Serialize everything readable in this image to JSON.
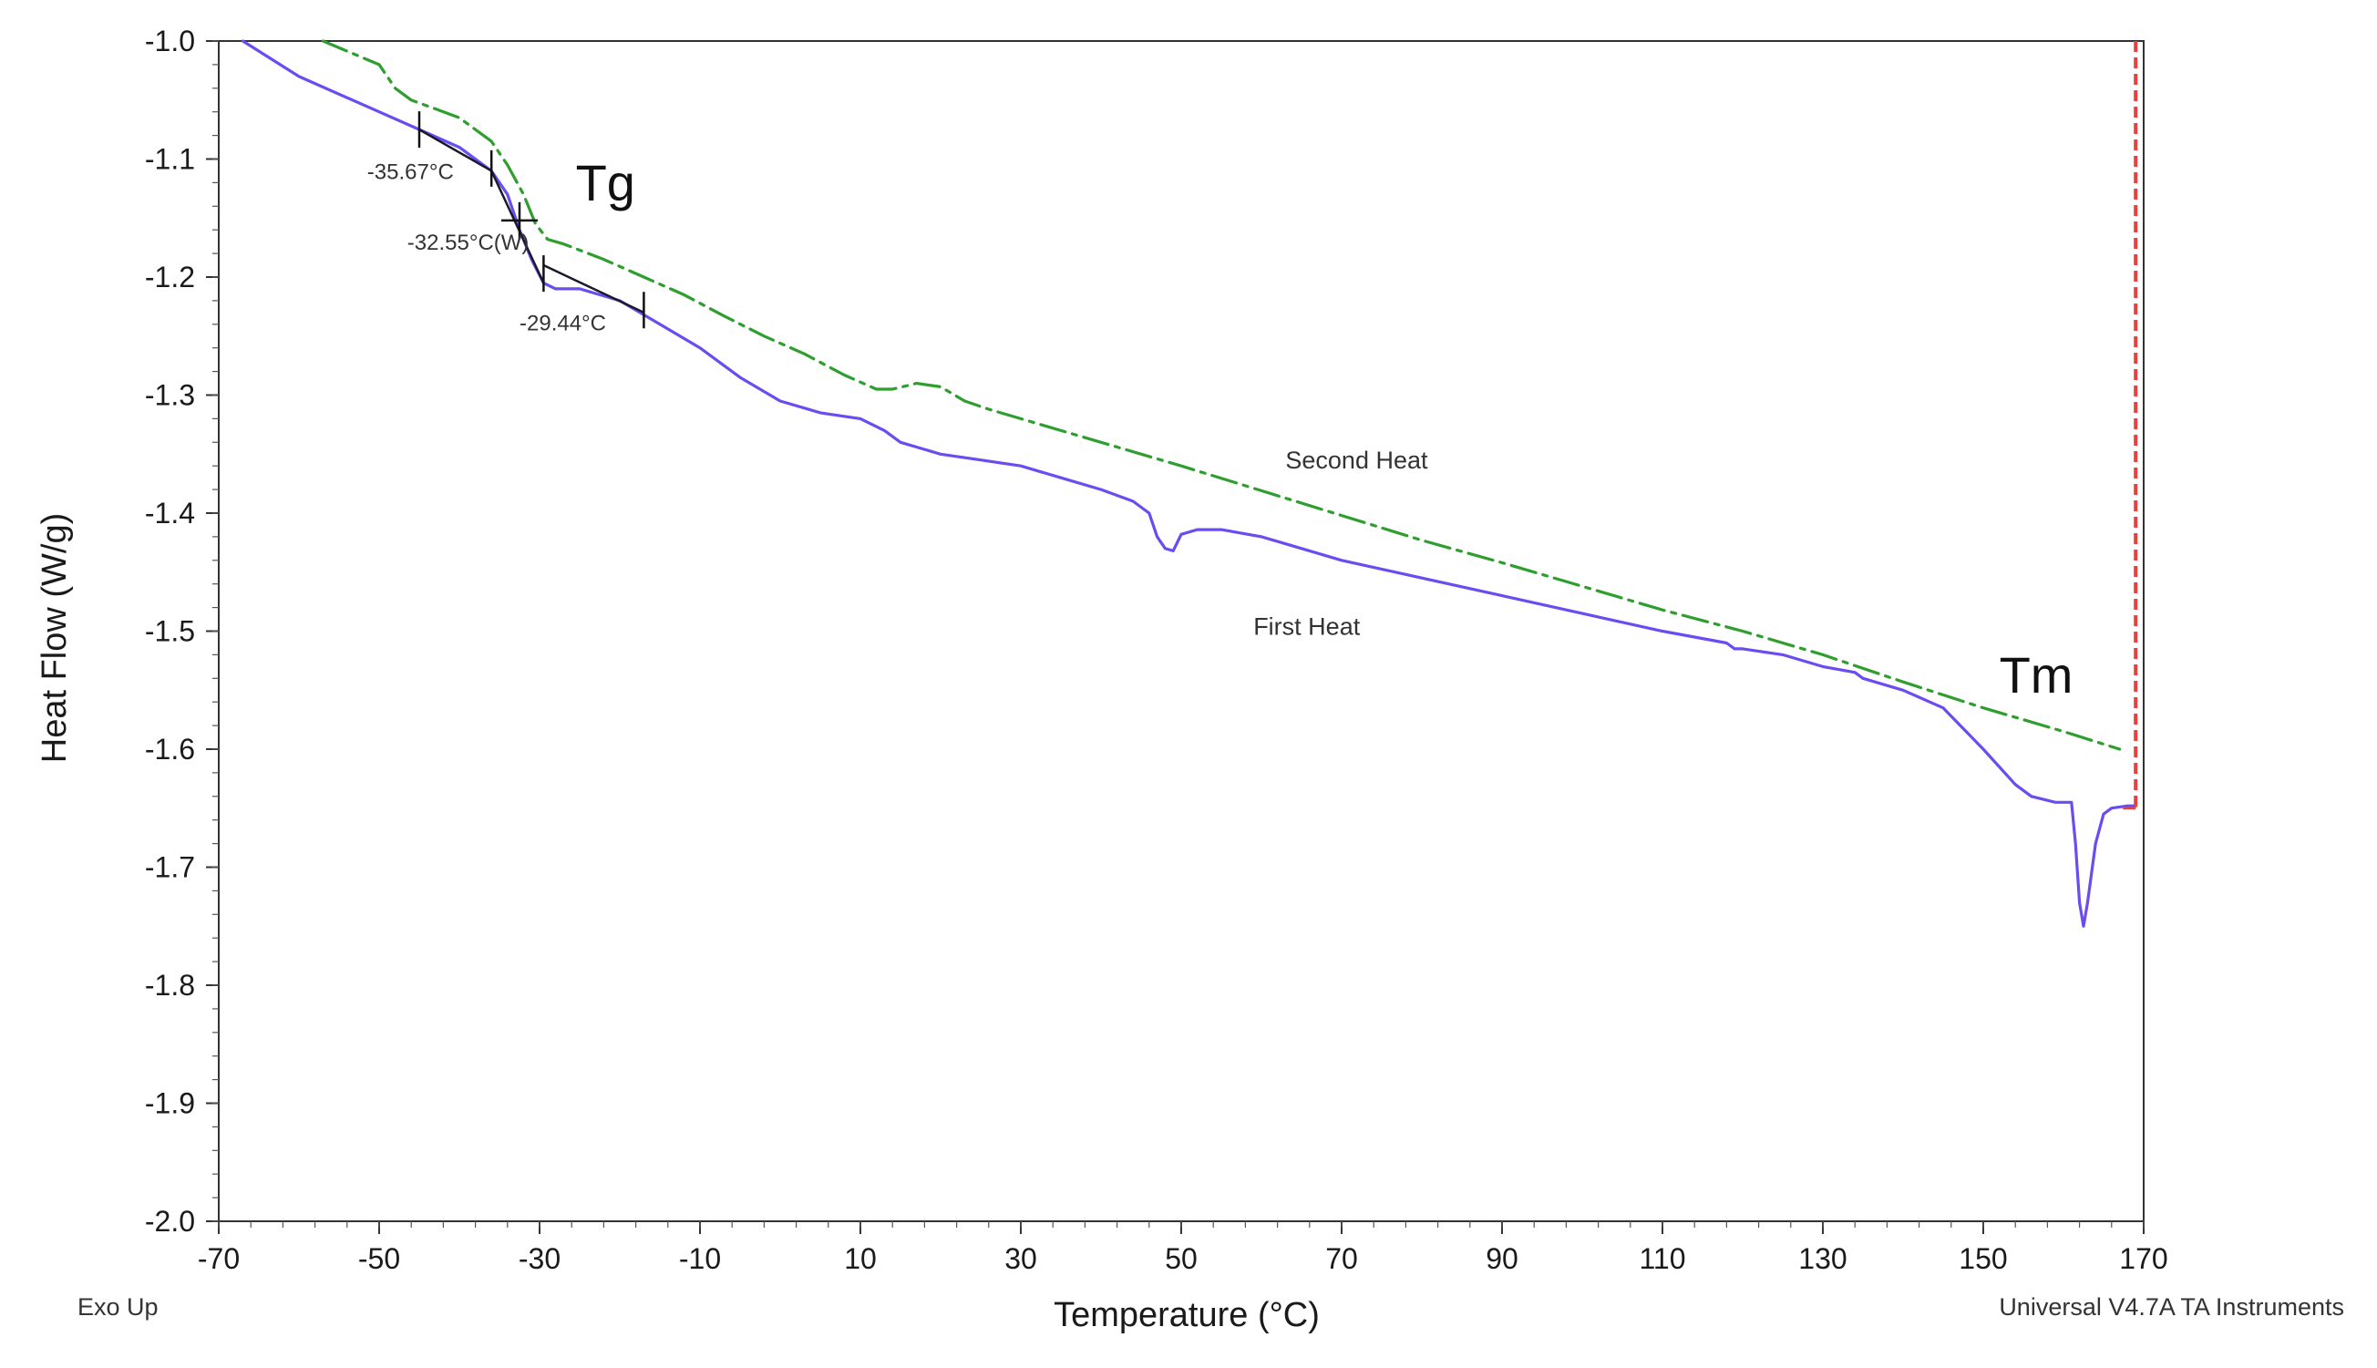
{
  "chart_data": {
    "type": "line",
    "title": "",
    "xlabel": "Temperature (°C)",
    "ylabel": "Heat Flow (W/g)",
    "xlim": [
      -70,
      170
    ],
    "ylim": [
      -2.0,
      -1.0
    ],
    "x_ticks": [
      -70,
      -50,
      -30,
      -10,
      10,
      30,
      50,
      70,
      90,
      110,
      130,
      150,
      170
    ],
    "x_tick_labels": [
      "-70",
      "-50",
      "-30",
      "-10",
      "10",
      "30",
      "50",
      "70",
      "90",
      "110",
      "130",
      "150",
      "170"
    ],
    "y_ticks": [
      -1.0,
      -1.1,
      -1.2,
      -1.3,
      -1.4,
      -1.5,
      -1.6,
      -1.7,
      -1.8,
      -1.9,
      -2.0
    ],
    "y_tick_labels": [
      "-1.0",
      "-1.1",
      "-1.2",
      "-1.3",
      "-1.4",
      "-1.5",
      "-1.6",
      "-1.7",
      "-1.8",
      "-1.9",
      "-2.0"
    ],
    "series": [
      {
        "name": "First Heat",
        "color": "#6b4cf0",
        "style": "solid",
        "x": [
          -67,
          -60,
          -50,
          -45,
          -40,
          -36,
          -34,
          -32.5,
          -31,
          -29.5,
          -28,
          -25,
          -20,
          -15,
          -10,
          -5,
          0,
          5,
          10,
          13,
          15,
          20,
          25,
          30,
          35,
          40,
          44,
          46,
          47,
          48,
          49,
          50,
          52,
          55,
          60,
          70,
          80,
          90,
          100,
          110,
          118,
          119,
          120,
          125,
          130,
          134,
          135,
          140,
          145,
          150,
          154,
          156,
          159,
          161,
          161.5,
          162,
          162.5,
          163,
          164,
          165,
          166,
          168,
          169
        ],
        "y": [
          -1.0,
          -1.03,
          -1.06,
          -1.075,
          -1.09,
          -1.11,
          -1.13,
          -1.16,
          -1.185,
          -1.205,
          -1.21,
          -1.21,
          -1.22,
          -1.24,
          -1.26,
          -1.285,
          -1.305,
          -1.315,
          -1.32,
          -1.33,
          -1.34,
          -1.35,
          -1.355,
          -1.36,
          -1.37,
          -1.38,
          -1.39,
          -1.4,
          -1.42,
          -1.43,
          -1.432,
          -1.418,
          -1.414,
          -1.414,
          -1.42,
          -1.44,
          -1.455,
          -1.47,
          -1.485,
          -1.5,
          -1.51,
          -1.515,
          -1.515,
          -1.52,
          -1.53,
          -1.535,
          -1.54,
          -1.55,
          -1.565,
          -1.6,
          -1.63,
          -1.64,
          -1.645,
          -1.645,
          -1.68,
          -1.73,
          -1.75,
          -1.73,
          -1.68,
          -1.655,
          -1.65,
          -1.648,
          -1.648
        ]
      },
      {
        "name": "Second Heat",
        "color": "#2e9e2e",
        "style": "dashdot",
        "x": [
          -57,
          -50,
          -48,
          -46,
          -44,
          -40,
          -36,
          -34,
          -32,
          -30.5,
          -29,
          -27,
          -22,
          -17,
          -12,
          -7,
          -2,
          3,
          8,
          12,
          14,
          17,
          20,
          23,
          26,
          30,
          40,
          50,
          60,
          70,
          80,
          90,
          100,
          110,
          120,
          130,
          140,
          150,
          160,
          167
        ],
        "y": [
          -1.0,
          -1.02,
          -1.04,
          -1.05,
          -1.055,
          -1.065,
          -1.085,
          -1.105,
          -1.13,
          -1.155,
          -1.168,
          -1.172,
          -1.185,
          -1.2,
          -1.215,
          -1.233,
          -1.25,
          -1.265,
          -1.283,
          -1.295,
          -1.295,
          -1.29,
          -1.293,
          -1.305,
          -1.312,
          -1.32,
          -1.34,
          -1.36,
          -1.381,
          -1.402,
          -1.423,
          -1.442,
          -1.462,
          -1.482,
          -1.5,
          -1.52,
          -1.543,
          -1.565,
          -1.585,
          -1.6
        ]
      }
    ],
    "tangent_lines": [
      {
        "x": [
          -45,
          -36
        ],
        "y": [
          -1.075,
          -1.11
        ]
      },
      {
        "x": [
          -36,
          -29.5
        ],
        "y": [
          -1.11,
          -1.205
        ]
      },
      {
        "x": [
          -29.5,
          -17
        ],
        "y": [
          -1.19,
          -1.23
        ]
      }
    ],
    "tick_marks": [
      {
        "x": -45,
        "y": -1.075
      },
      {
        "x": -36,
        "y": -1.108
      },
      {
        "x": -32.5,
        "y": -1.152
      },
      {
        "x": -29.5,
        "y": -1.197
      },
      {
        "x": -17,
        "y": -1.228
      }
    ],
    "cutoff_line": {
      "x": 169,
      "y_top": -1.0,
      "y_bottom": -1.65,
      "color": "#e8403c"
    },
    "annotations": [
      {
        "text": "-35.67°C",
        "x": -51.5,
        "y": -1.117
      },
      {
        "text": "-32.55°C(W)",
        "x": -46.5,
        "y": -1.177
      },
      {
        "text": "-29.44°C",
        "x": -32.5,
        "y": -1.245
      },
      {
        "text": "Tg",
        "x": -25.5,
        "y": -1.135
      },
      {
        "text": "Second Heat",
        "x": 63,
        "y": -1.362
      },
      {
        "text": "First Heat",
        "x": 59,
        "y": -1.503
      },
      {
        "text": "Tm",
        "x": 152,
        "y": -1.552
      }
    ],
    "footer_left": "Exo Up",
    "footer_right": "Universal V4.7A TA Instruments",
    "grid": false,
    "legend": "none"
  }
}
